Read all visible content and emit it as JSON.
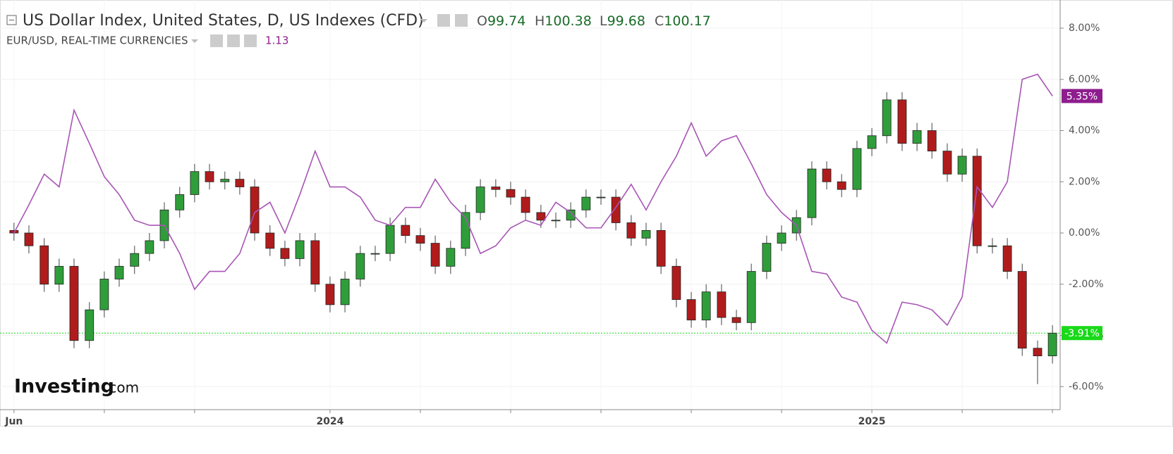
{
  "header": {
    "title": "US Dollar Index, United States, D, US Indexes (CFD)",
    "ohlc": [
      {
        "key": "O",
        "value": "99.74"
      },
      {
        "key": "H",
        "value": "100.38"
      },
      {
        "key": "L",
        "value": "99.68"
      },
      {
        "key": "C",
        "value": "100.17"
      }
    ],
    "overlay": "EUR/USD, REAL-TIME CURRENCIES",
    "overlay_value": "1.13"
  },
  "logo": {
    "brand": "Investing",
    "suffix": ".com"
  },
  "chart_data": {
    "type": "candlestick",
    "grid": true,
    "xlim": [
      -0.31,
      23.17
    ],
    "ylim": [
      -6.9,
      9.1
    ],
    "xticks": [
      {
        "value": 0,
        "label": "Jun"
      },
      {
        "value": 2,
        "label": null
      },
      {
        "value": 4,
        "label": null
      },
      {
        "value": 7,
        "label": "2024"
      },
      {
        "value": 9,
        "label": null
      },
      {
        "value": 11,
        "label": null
      },
      {
        "value": 13,
        "label": null
      },
      {
        "value": 15,
        "label": null
      },
      {
        "value": 17,
        "label": null
      },
      {
        "value": 19,
        "label": "2025"
      },
      {
        "value": 21,
        "label": null
      },
      {
        "value": 23,
        "label": null
      }
    ],
    "yticks": [
      {
        "value": 8,
        "label": "8.00%"
      },
      {
        "value": 6,
        "label": "6.00%"
      },
      {
        "value": 4,
        "label": "4.00%"
      },
      {
        "value": 2,
        "label": "2.00%"
      },
      {
        "value": 0,
        "label": "0.00%"
      },
      {
        "value": -2,
        "label": "-2.00%"
      },
      {
        "value": -4,
        "label": "-4.00%"
      },
      {
        "value": -6,
        "label": "-6.00%"
      }
    ],
    "x": [
      0,
      0.33,
      0.67,
      1,
      1.33,
      1.67,
      2,
      2.33,
      2.67,
      3,
      3.33,
      3.67,
      4,
      4.33,
      4.67,
      5,
      5.33,
      5.67,
      6,
      6.33,
      6.67,
      7,
      7.33,
      7.67,
      8,
      8.33,
      8.67,
      9,
      9.33,
      9.67,
      10,
      10.33,
      10.67,
      11,
      11.33,
      11.67,
      12,
      12.33,
      12.67,
      13,
      13.33,
      13.67,
      14,
      14.33,
      14.67,
      15,
      15.33,
      15.67,
      16,
      16.33,
      16.67,
      17,
      17.33,
      17.67,
      18,
      18.33,
      18.67,
      19,
      19.33,
      19.67,
      20,
      20.33,
      20.67,
      21,
      21.33,
      21.67,
      22,
      22.33,
      22.67,
      23
    ],
    "candles": {
      "up_color": "#2f9e3a",
      "down_color": "#b01c1c",
      "open": [
        0.1,
        0,
        -0.5,
        -2.0,
        -1.3,
        -4.2,
        -3.0,
        -1.8,
        -1.3,
        -0.8,
        -0.3,
        0.9,
        1.5,
        2.4,
        2.0,
        2.1,
        1.8,
        0.0,
        -0.6,
        -1.0,
        -0.3,
        -2.0,
        -2.8,
        -1.8,
        -0.8,
        -0.8,
        0.3,
        -0.1,
        -0.4,
        -1.3,
        -0.6,
        0.8,
        1.8,
        1.7,
        1.4,
        0.8,
        0.5,
        0.5,
        0.9,
        1.4,
        1.4,
        0.4,
        -0.2,
        0.1,
        -1.3,
        -2.6,
        -3.4,
        -2.3,
        -3.3,
        -3.5,
        -1.5,
        -0.4,
        0.0,
        0.6,
        2.5,
        2.0,
        1.7,
        3.3,
        3.8,
        5.2,
        3.5,
        4.0,
        3.2,
        2.3,
        3.0,
        -0.5,
        -0.5,
        -1.5,
        -4.5,
        -4.8
      ],
      "high": [
        0.4,
        0.3,
        -0.2,
        -1.0,
        -1.0,
        -2.7,
        -1.5,
        -1.0,
        -0.5,
        0.0,
        1.2,
        1.8,
        2.7,
        2.7,
        2.4,
        2.4,
        2.1,
        0.3,
        -0.3,
        0.0,
        0.0,
        -1.7,
        -1.5,
        -0.5,
        -0.5,
        0.6,
        0.6,
        0.2,
        -0.1,
        -0.3,
        1.1,
        2.1,
        2.1,
        2.0,
        1.7,
        1.1,
        0.8,
        1.2,
        1.7,
        1.7,
        1.7,
        0.7,
        0.4,
        0.4,
        -1.0,
        -2.3,
        -2.0,
        -2.0,
        -3.0,
        -1.2,
        -0.1,
        0.3,
        0.9,
        2.8,
        2.8,
        2.3,
        3.6,
        4.1,
        5.5,
        5.5,
        4.3,
        4.3,
        3.5,
        3.3,
        3.3,
        -0.2,
        -0.2,
        -1.2,
        -4.2,
        -3.6
      ],
      "low": [
        -0.3,
        -0.8,
        -2.3,
        -2.3,
        -4.5,
        -4.5,
        -3.3,
        -2.1,
        -1.6,
        -1.1,
        -0.6,
        0.6,
        1.2,
        1.7,
        1.7,
        1.5,
        -0.3,
        -0.9,
        -1.3,
        -1.3,
        -2.3,
        -3.1,
        -3.1,
        -2.1,
        -1.1,
        -1.1,
        -0.4,
        -0.7,
        -1.6,
        -1.6,
        -0.9,
        0.5,
        1.4,
        1.1,
        0.5,
        0.2,
        0.2,
        0.2,
        0.6,
        1.1,
        0.1,
        -0.5,
        -0.5,
        -1.6,
        -2.9,
        -3.7,
        -3.7,
        -3.6,
        -3.8,
        -3.8,
        -1.8,
        -0.7,
        -0.3,
        0.3,
        1.7,
        1.4,
        1.4,
        3.0,
        3.5,
        3.2,
        3.2,
        2.9,
        2.0,
        2.0,
        -0.8,
        -0.8,
        -1.8,
        -4.8,
        -5.9,
        -5.1
      ],
      "close": [
        0,
        -0.5,
        -2.0,
        -1.3,
        -4.2,
        -3.0,
        -1.8,
        -1.3,
        -0.8,
        -0.3,
        0.9,
        1.5,
        2.4,
        2.0,
        2.1,
        1.8,
        0.0,
        -0.6,
        -1.0,
        -0.3,
        -2.0,
        -2.8,
        -1.8,
        -0.8,
        -0.8,
        0.3,
        -0.1,
        -0.4,
        -1.3,
        -0.6,
        0.8,
        1.8,
        1.7,
        1.4,
        0.8,
        0.5,
        0.5,
        0.9,
        1.4,
        1.4,
        0.4,
        -0.2,
        0.1,
        -1.3,
        -2.6,
        -3.4,
        -2.3,
        -3.3,
        -3.5,
        -1.5,
        -0.4,
        0.0,
        0.6,
        2.5,
        2.0,
        1.7,
        3.3,
        3.8,
        5.2,
        3.5,
        4.0,
        3.2,
        2.3,
        3.0,
        -0.5,
        -0.5,
        -1.5,
        -4.5,
        -4.8,
        -3.91
      ]
    },
    "overlay": {
      "type": "line",
      "color": "#a855b5",
      "values": [
        0,
        1.1,
        2.3,
        1.8,
        4.8,
        3.5,
        2.2,
        1.5,
        0.5,
        0.3,
        0.3,
        -0.8,
        -2.2,
        -1.5,
        -1.5,
        -0.8,
        0.8,
        1.2,
        0,
        1.5,
        3.2,
        1.8,
        1.8,
        1.4,
        0.5,
        0.3,
        1.0,
        1.0,
        2.1,
        1.2,
        0.6,
        -0.8,
        -0.5,
        0.2,
        0.5,
        0.3,
        1.2,
        0.8,
        0.2,
        0.2,
        1.0,
        1.9,
        0.9,
        2.0,
        3.0,
        4.3,
        3.0,
        3.6,
        3.8,
        2.7,
        1.5,
        0.8,
        0.3,
        -1.5,
        -1.6,
        -2.5,
        -2.7,
        -3.8,
        -4.3,
        -2.7,
        -2.8,
        -3.0,
        -3.6,
        -2.5,
        1.8,
        1.0,
        2.0,
        6.0,
        6.2,
        5.35
      ]
    },
    "last_labels": [
      {
        "value": 5.35,
        "label": "5.35%",
        "color": "#8e1d8e"
      },
      {
        "value": -3.91,
        "label": "-3.91%",
        "color": "#19d919"
      }
    ],
    "last_line_color": "#19d919"
  }
}
